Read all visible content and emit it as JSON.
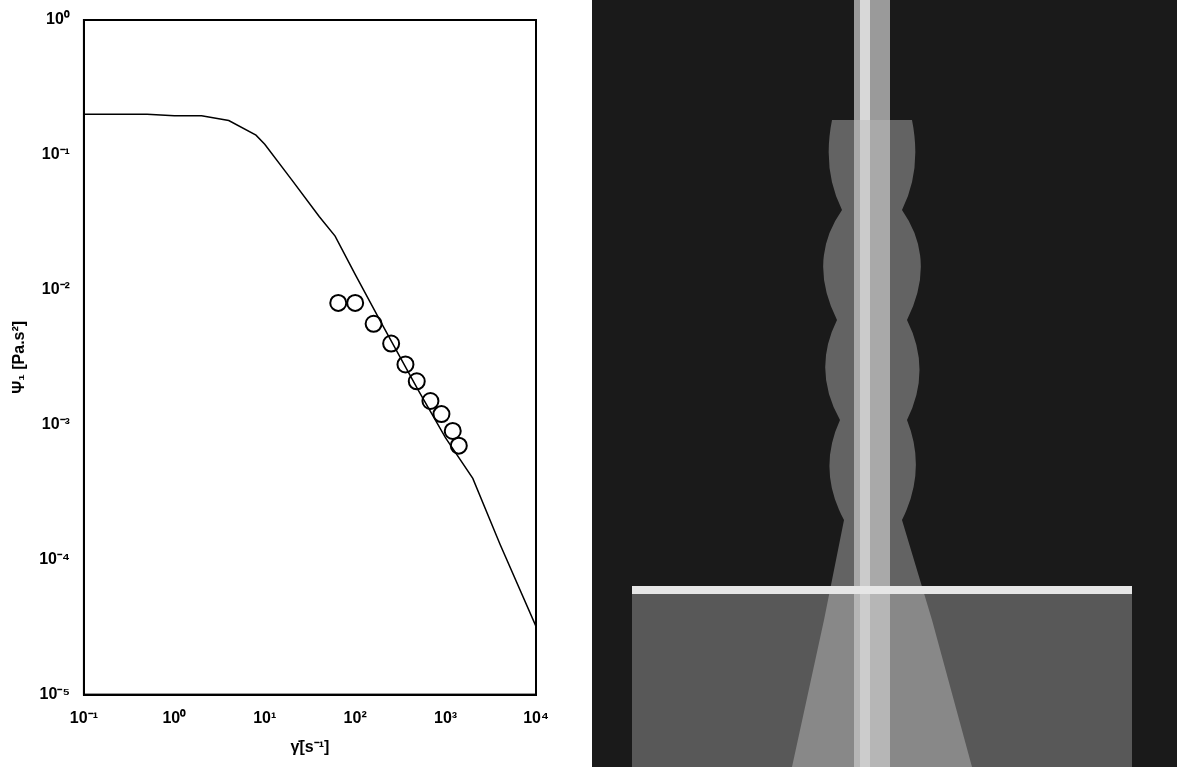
{
  "chart_data": {
    "type": "scatter",
    "x_label": "γ̇[s⁻¹]",
    "y_label": "Ψ₁ [Pa.s²]",
    "log": true,
    "grid": false,
    "xlim": [
      0.1,
      10000
    ],
    "ylim": [
      1e-05,
      1
    ],
    "xticks": [
      {
        "value": 0.1,
        "label": "10⁻¹"
      },
      {
        "value": 1,
        "label": "10⁰"
      },
      {
        "value": 10,
        "label": "10¹"
      },
      {
        "value": 100,
        "label": "10²"
      },
      {
        "value": 1000,
        "label": "10³"
      },
      {
        "value": 10000,
        "label": "10⁴"
      }
    ],
    "yticks": [
      {
        "value": 1e-05,
        "label": "10⁻⁵"
      },
      {
        "value": 0.0001,
        "label": "10⁻⁴"
      },
      {
        "value": 0.001,
        "label": "10⁻³"
      },
      {
        "value": 0.01,
        "label": "10⁻²"
      },
      {
        "value": 0.1,
        "label": "10⁻¹"
      },
      {
        "value": 1,
        "label": "10⁰"
      }
    ],
    "series": [
      {
        "type": "line",
        "color": "#000000",
        "line_style": "solid",
        "marker": "none",
        "x": [
          0.1,
          0.5,
          1,
          2,
          4,
          8,
          10,
          20,
          40,
          60,
          100,
          200,
          500,
          1000,
          2000,
          4000,
          10000
        ],
        "values": [
          0.2,
          0.2,
          0.195,
          0.195,
          0.18,
          0.14,
          0.12,
          0.065,
          0.035,
          0.025,
          0.013,
          0.0055,
          0.0018,
          0.0008,
          0.0004,
          0.00013,
          3.2e-05
        ]
      },
      {
        "type": "scatter",
        "color": "#000000",
        "marker": "open circle",
        "x": [
          65,
          100,
          160,
          250,
          360,
          480,
          680,
          900,
          1200,
          1400
        ],
        "values": [
          0.008,
          0.008,
          0.0056,
          0.004,
          0.0028,
          0.0021,
          0.0015,
          0.0012,
          0.0009,
          0.0007
        ]
      }
    ]
  }
}
